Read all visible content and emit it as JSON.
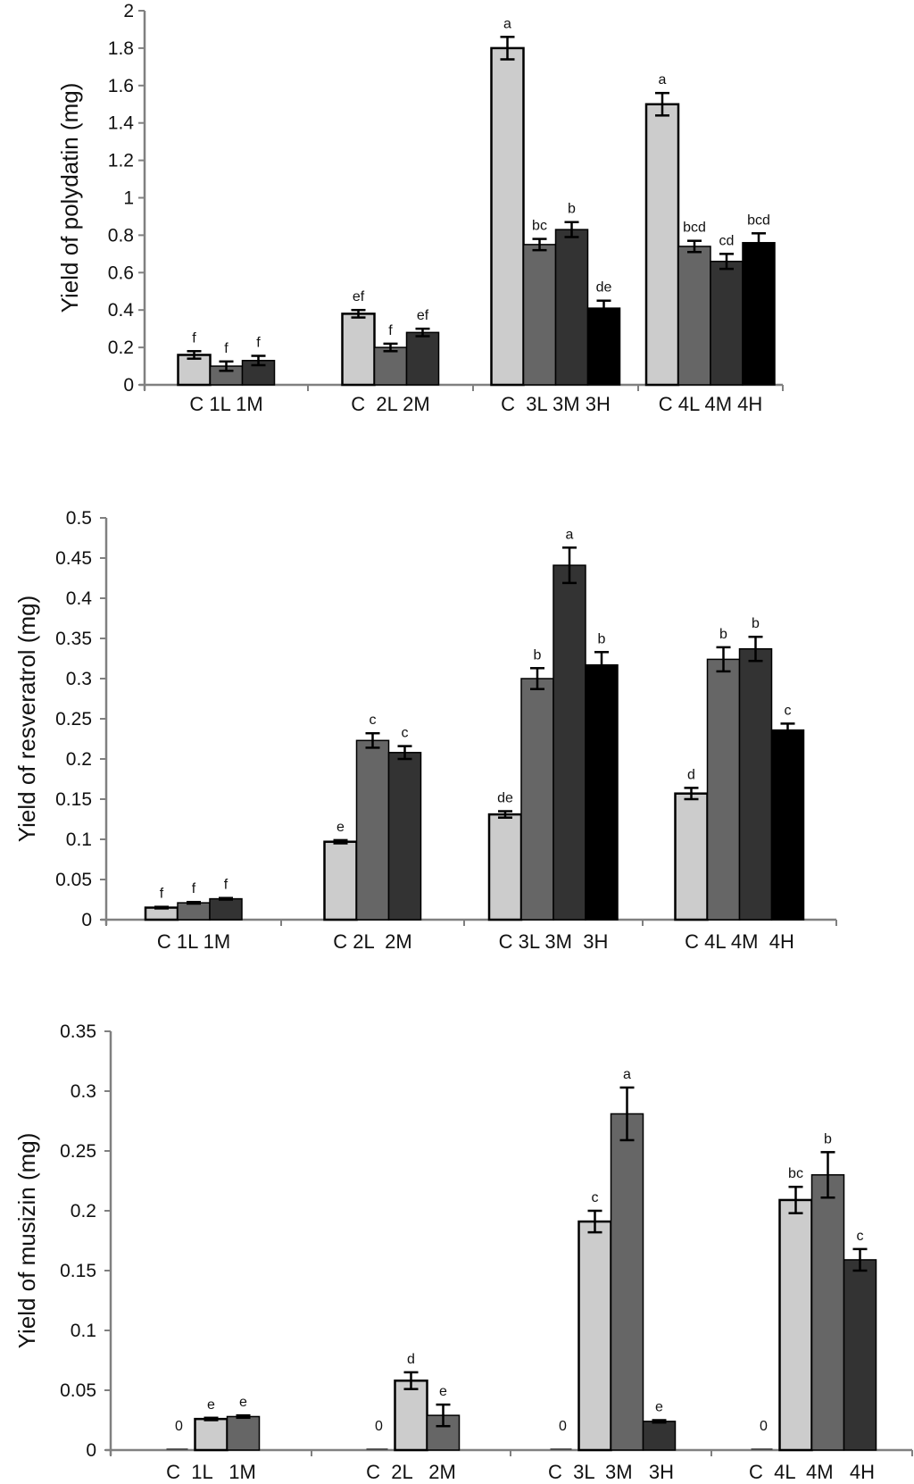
{
  "colors": {
    "axis": "#808080",
    "C": "#cccccc",
    "L": "#666666",
    "M": "#333333",
    "H": "#000000",
    "outline": "#000000"
  },
  "chart_data": [
    {
      "type": "bar",
      "title": "",
      "xlabel": "",
      "ylabel": "Yield of polydatin (mg)",
      "ylim": [
        0,
        2
      ],
      "yticks": [
        "0",
        "0.2",
        "0.4",
        "0.6",
        "0.8",
        "1",
        "1.2",
        "1.4",
        "1.6",
        "1.8",
        "2"
      ],
      "ytick_values": [
        0,
        0.2,
        0.4,
        0.6,
        0.8,
        1.0,
        1.2,
        1.4,
        1.6,
        1.8,
        2.0
      ],
      "groups": [
        {
          "label": "C 1L 1M",
          "bars": [
            {
              "category": "C",
              "series": "C",
              "value": 0.16,
              "error": 0.02,
              "sig": "f"
            },
            {
              "category": "1L",
              "series": "L",
              "value": 0.1,
              "error": 0.025,
              "sig": "f"
            },
            {
              "category": "1M",
              "series": "M",
              "value": 0.13,
              "error": 0.025,
              "sig": "f"
            }
          ]
        },
        {
          "label": "C  2L 2M",
          "bars": [
            {
              "category": "C",
              "series": "C",
              "value": 0.38,
              "error": 0.02,
              "sig": "ef"
            },
            {
              "category": "2L",
              "series": "L",
              "value": 0.2,
              "error": 0.02,
              "sig": "f"
            },
            {
              "category": "2M",
              "series": "M",
              "value": 0.28,
              "error": 0.02,
              "sig": "ef"
            }
          ]
        },
        {
          "label": "C  3L 3M 3H",
          "bars": [
            {
              "category": "C",
              "series": "C",
              "value": 1.8,
              "error": 0.06,
              "sig": "a"
            },
            {
              "category": "3L",
              "series": "L",
              "value": 0.75,
              "error": 0.03,
              "sig": "bc"
            },
            {
              "category": "3M",
              "series": "M",
              "value": 0.83,
              "error": 0.04,
              "sig": "b"
            },
            {
              "category": "3H",
              "series": "H",
              "value": 0.41,
              "error": 0.04,
              "sig": "de"
            }
          ]
        },
        {
          "label": "C 4L 4M 4H",
          "bars": [
            {
              "category": "C",
              "series": "C",
              "value": 1.5,
              "error": 0.06,
              "sig": "a"
            },
            {
              "category": "4L",
              "series": "L",
              "value": 0.74,
              "error": 0.03,
              "sig": "bcd"
            },
            {
              "category": "4M",
              "series": "M",
              "value": 0.66,
              "error": 0.04,
              "sig": "cd"
            },
            {
              "category": "4H",
              "series": "H",
              "value": 0.76,
              "error": 0.05,
              "sig": "bcd"
            }
          ]
        }
      ]
    },
    {
      "type": "bar",
      "title": "",
      "xlabel": "",
      "ylabel": "Yield of resveratrol (mg)",
      "ylim": [
        0,
        0.5
      ],
      "yticks": [
        "0",
        "0.05",
        "0.1",
        "0.15",
        "0.2",
        "0.25",
        "0.3",
        "0.35",
        "0.4",
        "0.45",
        "0.5"
      ],
      "ytick_values": [
        0,
        0.05,
        0.1,
        0.15,
        0.2,
        0.25,
        0.3,
        0.35,
        0.4,
        0.45,
        0.5
      ],
      "groups": [
        {
          "label": "C 1L 1M",
          "bars": [
            {
              "category": "C",
              "series": "C",
              "value": 0.015,
              "error": 0.001,
              "sig": "f"
            },
            {
              "category": "1L",
              "series": "L",
              "value": 0.021,
              "error": 0.001,
              "sig": "f"
            },
            {
              "category": "1M",
              "series": "M",
              "value": 0.026,
              "error": 0.001,
              "sig": "f"
            }
          ]
        },
        {
          "label": "C 2L  2M",
          "bars": [
            {
              "category": "C",
              "series": "C",
              "value": 0.097,
              "error": 0.002,
              "sig": "e"
            },
            {
              "category": "2L",
              "series": "L",
              "value": 0.223,
              "error": 0.009,
              "sig": "c"
            },
            {
              "category": "2M",
              "series": "M",
              "value": 0.208,
              "error": 0.008,
              "sig": "c"
            }
          ]
        },
        {
          "label": "C 3L 3M  3H",
          "bars": [
            {
              "category": "C",
              "series": "C",
              "value": 0.131,
              "error": 0.004,
              "sig": "de"
            },
            {
              "category": "3L",
              "series": "L",
              "value": 0.3,
              "error": 0.013,
              "sig": "b"
            },
            {
              "category": "3M",
              "series": "M",
              "value": 0.441,
              "error": 0.022,
              "sig": "a"
            },
            {
              "category": "3H",
              "series": "H",
              "value": 0.317,
              "error": 0.016,
              "sig": "b"
            }
          ]
        },
        {
          "label": "C 4L 4M  4H",
          "bars": [
            {
              "category": "C",
              "series": "C",
              "value": 0.157,
              "error": 0.007,
              "sig": "d"
            },
            {
              "category": "4L",
              "series": "L",
              "value": 0.324,
              "error": 0.015,
              "sig": "b"
            },
            {
              "category": "4M",
              "series": "M",
              "value": 0.337,
              "error": 0.015,
              "sig": "b"
            },
            {
              "category": "4H",
              "series": "H",
              "value": 0.236,
              "error": 0.008,
              "sig": "c"
            }
          ]
        }
      ]
    },
    {
      "type": "bar",
      "title": "",
      "xlabel": "",
      "ylabel": "Yield of musizin (mg)",
      "ylim": [
        0,
        0.35
      ],
      "yticks": [
        "0",
        "0.05",
        "0.1",
        "0.15",
        "0.2",
        "0.25",
        "0.3",
        "0.35"
      ],
      "ytick_values": [
        0,
        0.05,
        0.1,
        0.15,
        0.2,
        0.25,
        0.3,
        0.35
      ],
      "groups": [
        {
          "label": "C  1L   1M",
          "bars": [
            {
              "category": "C",
              "series": "C",
              "value": 0,
              "error": 0,
              "sig": "0"
            },
            {
              "category": "1L",
              "series": "C",
              "value": 0.026,
              "error": 0.001,
              "sig": "e"
            },
            {
              "category": "1M",
              "series": "L",
              "value": 0.028,
              "error": 0.001,
              "sig": "e"
            }
          ]
        },
        {
          "label": "C  2L   2M",
          "bars": [
            {
              "category": "C",
              "series": "C",
              "value": 0,
              "error": 0,
              "sig": "0"
            },
            {
              "category": "2L",
              "series": "C",
              "value": 0.058,
              "error": 0.007,
              "sig": "d"
            },
            {
              "category": "2M",
              "series": "L",
              "value": 0.029,
              "error": 0.009,
              "sig": "e"
            }
          ]
        },
        {
          "label": "C  3L  3M   3H",
          "bars": [
            {
              "category": "C",
              "series": "C",
              "value": 0,
              "error": 0,
              "sig": "0"
            },
            {
              "category": "3L",
              "series": "C",
              "value": 0.191,
              "error": 0.009,
              "sig": "c"
            },
            {
              "category": "3M",
              "series": "L",
              "value": 0.281,
              "error": 0.022,
              "sig": "a"
            },
            {
              "category": "3H",
              "series": "M",
              "value": 0.024,
              "error": 0.001,
              "sig": "e"
            }
          ]
        },
        {
          "label": "C  4L  4M   4H",
          "bars": [
            {
              "category": "C",
              "series": "C",
              "value": 0,
              "error": 0,
              "sig": "0"
            },
            {
              "category": "4L",
              "series": "C",
              "value": 0.209,
              "error": 0.011,
              "sig": "bc"
            },
            {
              "category": "4M",
              "series": "L",
              "value": 0.23,
              "error": 0.019,
              "sig": "b"
            },
            {
              "category": "4H",
              "series": "M",
              "value": 0.159,
              "error": 0.009,
              "sig": "c"
            }
          ]
        }
      ]
    }
  ]
}
